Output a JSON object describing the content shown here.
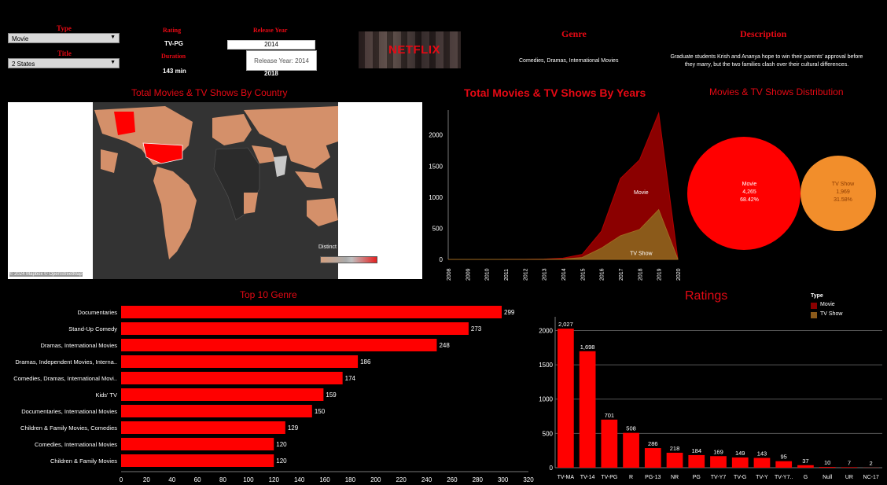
{
  "filters": {
    "type_label": "Type",
    "type_value": "Movie",
    "title_label": "Title",
    "title_value": "2 States",
    "rating_label": "Rating",
    "rating_value": "TV-PG",
    "duration_label": "Duration",
    "duration_value": "143 min",
    "release_label": "Release Year",
    "release_value": "2014",
    "tooltip": "Release Year: 2014",
    "second_year": "2018"
  },
  "logo": "NETFLIX",
  "genre": {
    "label": "Genre",
    "value": "Comedies, Dramas, International Movies"
  },
  "description": {
    "label": "Description",
    "line1": "Graduate students Krish and Ananya hope to win their parents' approval before",
    "line2": "they marry, but the two families clash over their cultural differences."
  },
  "map": {
    "title": "Total Movies & TV Shows By Country",
    "legend_title": "Distinct count of Sh...",
    "credit": "© 2024 Mapbox  © OpenStreetMap"
  },
  "colors": {
    "accent": "#e50914",
    "movie": "#8b0000",
    "tvshow": "#8b5a1a",
    "pie_movie": "#ff0000",
    "pie_tv": "#f28e2b",
    "map_land": "#d4906a"
  },
  "chart_data": [
    {
      "type": "area",
      "title": "Total Movies & TV Shows By Years",
      "x": [
        "2008",
        "2009",
        "2010",
        "2011",
        "2012",
        "2013",
        "2014",
        "2015",
        "2016",
        "2017",
        "2018",
        "2019",
        "2020"
      ],
      "ylim": [
        0,
        2400
      ],
      "yticks": [
        0,
        500,
        1000,
        1500,
        2000
      ],
      "series": [
        {
          "name": "Movie",
          "values": [
            0,
            0,
            0,
            1,
            2,
            5,
            20,
            80,
            450,
            1300,
            1600,
            2350,
            10
          ]
        },
        {
          "name": "TV Show",
          "values": [
            0,
            0,
            0,
            0,
            0,
            2,
            5,
            30,
            180,
            380,
            480,
            800,
            5
          ]
        }
      ]
    },
    {
      "type": "pie",
      "title": "Movies & TV Shows Distribution",
      "slices": [
        {
          "label": "Movie",
          "count": "4,265",
          "pct": "68.42%",
          "value": 4265
        },
        {
          "label": "TV Show",
          "count": "1,969",
          "pct": "31.58%",
          "value": 1969
        }
      ]
    },
    {
      "type": "bar",
      "title": "Top 10 Genre",
      "categories": [
        "Documentaries",
        "Stand-Up Comedy",
        "Dramas, International Movies",
        "Dramas, Independent Movies, Interna..",
        "Comedies, Dramas, International Movi..",
        "Kids' TV",
        "Documentaries, International Movies",
        "Children & Family Movies, Comedies",
        "Comedies, International Movies",
        "Children & Family Movies"
      ],
      "values": [
        299,
        273,
        248,
        186,
        174,
        159,
        150,
        129,
        120,
        120
      ],
      "xlim": [
        0,
        320
      ],
      "xticks": [
        0,
        20,
        40,
        60,
        80,
        100,
        120,
        140,
        160,
        180,
        200,
        220,
        240,
        260,
        280,
        300,
        320
      ]
    },
    {
      "type": "bar",
      "title": "Ratings",
      "categories": [
        "TV-MA",
        "TV-14",
        "TV-PG",
        "R",
        "PG-13",
        "NR",
        "PG",
        "TV-Y7",
        "TV-G",
        "TV-Y",
        "TV-Y7..",
        "G",
        "Null",
        "UR",
        "NC-17"
      ],
      "values": [
        2027,
        1698,
        701,
        508,
        286,
        218,
        184,
        169,
        149,
        143,
        95,
        37,
        10,
        7,
        2
      ],
      "labels": [
        "2,027",
        "1,698",
        "701",
        "508",
        "286",
        "218",
        "184",
        "169",
        "149",
        "143",
        "95",
        "37",
        "10",
        "7",
        "2"
      ],
      "ylim": [
        0,
        2200
      ],
      "yticks": [
        0,
        500,
        1000,
        1500,
        2000
      ],
      "legend": {
        "title": "Type",
        "items": [
          "Movie",
          "TV Show"
        ]
      }
    }
  ]
}
